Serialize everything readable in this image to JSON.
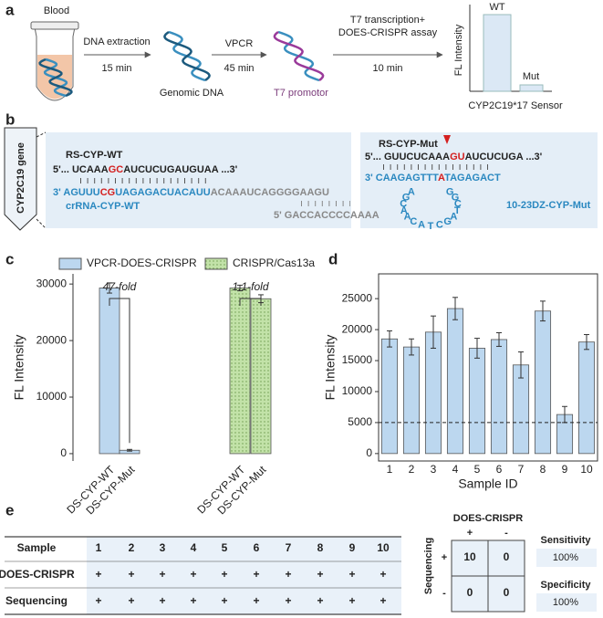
{
  "panel_labels": [
    "a",
    "b",
    "c",
    "d",
    "e"
  ],
  "workflow": {
    "blood": "Blood",
    "step1": [
      "DNA extraction",
      "15 min"
    ],
    "genomic": "Genomic DNA",
    "step2": [
      "VPCR",
      "45 min"
    ],
    "t7": "T7 promotor",
    "step3": [
      "T7 transcription+",
      "DOES-CRISPR assay",
      "10 min"
    ],
    "sensor": {
      "y_label": "FL Intensity",
      "wt": "WT",
      "mut": "Mut",
      "title": "CYP2C19*17 Sensor"
    }
  },
  "gene": {
    "label": "CYP2C19 gene",
    "wt": {
      "name": "RS-CYP-WT",
      "target": [
        "5'... UCAAA",
        "GC",
        "AUCUCUGAUGUAA ...3'"
      ],
      "crrna": [
        "3' AGUUU",
        "CG",
        "UAGAGACUACAUU",
        "ACAAAUCAGGGGAAGU"
      ],
      "crrna_name": "crRNA-CYP-WT",
      "primer": "5' GACCACCCCAAAA"
    },
    "mut": {
      "name": "RS-CYP-Mut",
      "target": [
        "5'... GUUCUCAAA",
        "GU",
        "AUCUCUGA ...3'"
      ],
      "probe": [
        "3' CAAGAGTTT",
        "A",
        "TAGAGACT"
      ],
      "loop": [
        "A",
        "G",
        "C",
        "A",
        "A",
        "C",
        "A",
        "T",
        "C",
        "G",
        "A",
        "T",
        "C",
        "G",
        "G"
      ],
      "probe_name": "10-23DZ-CYP-Mut"
    }
  },
  "chart_data": [
    {
      "type": "bar",
      "y_label": "FL Intensity",
      "categories": [
        "DS-CYP-WT",
        "DS-CYP-Mut",
        "DS-CYP-WT",
        "DS-CYP-Mut"
      ],
      "series": [
        {
          "name": "VPCR-DOES-CRISPR",
          "color": "#bcd7ef",
          "values": [
            29300,
            600,
            null,
            null
          ],
          "errors": [
            900,
            150,
            null,
            null
          ]
        },
        {
          "name": "CRISPR/Cas13a",
          "color": "#c2e2a8",
          "values": [
            null,
            null,
            29300,
            27400
          ],
          "errors": [
            null,
            null,
            500,
            700
          ]
        }
      ],
      "ylim": [
        -1300,
        31800
      ],
      "yticks": [
        0,
        10000,
        20000,
        30000
      ],
      "annotations": [
        "47-fold",
        "1.1-fold"
      ],
      "legend": "top"
    },
    {
      "type": "bar",
      "y_label": "FL Intensity",
      "x_label": "Sample ID",
      "categories": [
        "1",
        "2",
        "3",
        "4",
        "5",
        "6",
        "7",
        "8",
        "9",
        "10"
      ],
      "series": [
        {
          "name": null,
          "color": "#bcd7ef",
          "values": [
            18500,
            17200,
            19600,
            23400,
            17000,
            18400,
            14300,
            23000,
            6300,
            18000
          ],
          "errors": [
            1300,
            1300,
            2600,
            1800,
            1600,
            1100,
            2100,
            1600,
            1300,
            1200
          ]
        }
      ],
      "ylim": [
        -1200,
        29000
      ],
      "yticks": [
        0,
        5000,
        10000,
        15000,
        20000,
        25000
      ],
      "threshold": 5000
    }
  ],
  "table": {
    "header": [
      "Sample",
      "1",
      "2",
      "3",
      "4",
      "5",
      "6",
      "7",
      "8",
      "9",
      "10"
    ],
    "rows": [
      [
        "DOES-CRISPR",
        "+",
        "+",
        "+",
        "+",
        "+",
        "+",
        "+",
        "+",
        "+",
        "+"
      ],
      [
        "Sequencing",
        "+",
        "+",
        "+",
        "+",
        "+",
        "+",
        "+",
        "+",
        "+",
        "+"
      ]
    ]
  },
  "matrix": {
    "col_title": "DOES-CRISPR",
    "row_title": "Sequencing",
    "col_labels": [
      "+",
      "-"
    ],
    "row_labels": [
      "+",
      "-"
    ],
    "cells": [
      [
        10,
        0
      ],
      [
        0,
        0
      ]
    ]
  },
  "metrics": [
    {
      "name": "Sensitivity",
      "value": "100%"
    },
    {
      "name": "Specificity",
      "value": "100%"
    }
  ]
}
